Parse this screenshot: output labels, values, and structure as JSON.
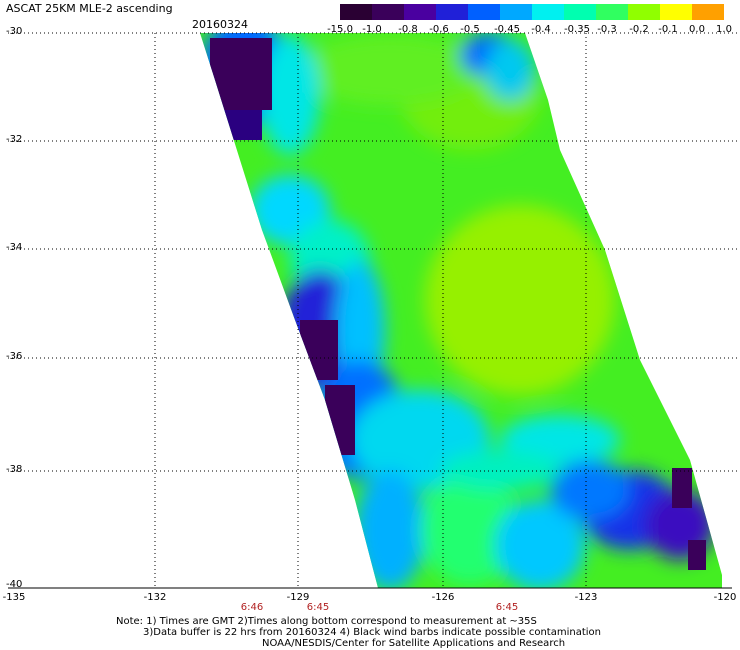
{
  "header": {
    "title": "ASCAT 25KM MLE-2 ascending",
    "date": "20160324"
  },
  "colorbar": {
    "labels": [
      "-15.0",
      "-1.0",
      "-0.8",
      "-0.6",
      "-0.5",
      "-0.45",
      "-0.4",
      "-0.35",
      "-0.3",
      "-0.2",
      "-0.1",
      "0.0",
      "1.0"
    ],
    "colors": [
      "#2a0033",
      "#3a005a",
      "#4a00a0",
      "#2020d8",
      "#0060ff",
      "#00a8ff",
      "#00f0f0",
      "#00ffb0",
      "#30ff60",
      "#90ff00",
      "#ffff00",
      "#ffa000",
      "#ff2000"
    ]
  },
  "axes": {
    "lat_labels": [
      "-30",
      "-32",
      "-34",
      "-36",
      "-38",
      "-40"
    ],
    "lon_labels": [
      "-135",
      "-132",
      "-129",
      "-126",
      "-123",
      "-120"
    ],
    "time_labels": [
      "6:46",
      "6:45",
      "6:45"
    ]
  },
  "notes": {
    "line1": "Note: 1) Times are GMT 2)Times along bottom correspond to measurement at ~35S",
    "line2": "3)Data buffer is 22 hrs from 20160324 4) Black wind barbs indicate possible contamination",
    "line3": "NOAA/NESDIS/Center for Satellite Applications and Research"
  }
}
